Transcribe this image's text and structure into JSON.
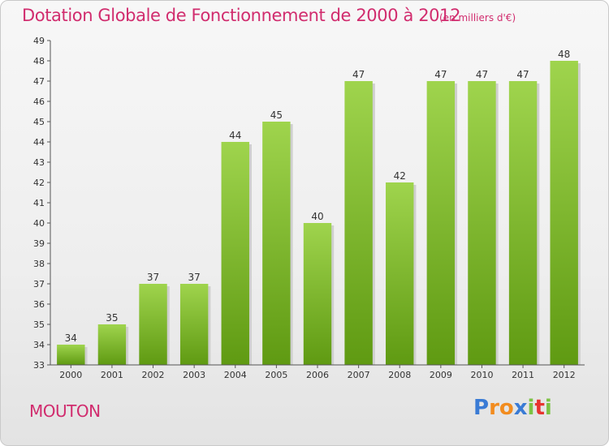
{
  "header": {
    "title": "Dotation Globale de Fonctionnement de 2000 à 2012",
    "unit": "(en milliers d'€)"
  },
  "footer": {
    "commune": "MOUTON",
    "logo_letters": [
      "P",
      "r",
      "o",
      "x",
      "i",
      "t",
      "i"
    ]
  },
  "colors": {
    "title": "#d12c6e",
    "bar_top": "#9fd44d",
    "bar_bottom": "#5f9a12",
    "logo": [
      "#3a7bd5",
      "#f28c1f",
      "#f28c1f",
      "#3a7bd5",
      "#7cc243",
      "#e7342f",
      "#7cc243"
    ]
  },
  "chart_data": {
    "type": "bar",
    "title": "Dotation Globale de Fonctionnement de 2000 à 2012",
    "subtitle": "(en milliers d'€)",
    "xlabel": "",
    "ylabel": "",
    "categories": [
      "2000",
      "2001",
      "2002",
      "2003",
      "2004",
      "2005",
      "2006",
      "2007",
      "2008",
      "2009",
      "2010",
      "2011",
      "2012"
    ],
    "values": [
      34,
      35,
      37,
      37,
      44,
      45,
      40,
      47,
      42,
      47,
      47,
      47,
      48
    ],
    "ylim": [
      33,
      49
    ],
    "yticks": [
      33,
      34,
      35,
      36,
      37,
      38,
      39,
      40,
      41,
      42,
      43,
      44,
      45,
      46,
      47,
      48,
      49
    ],
    "grid": false,
    "legend": "none"
  }
}
